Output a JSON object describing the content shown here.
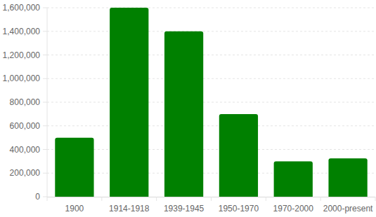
{
  "chart_data": {
    "type": "bar",
    "categories": [
      "1900",
      "1914-1918",
      "1939-1945",
      "1950-1970",
      "1970-2000",
      "2000-present"
    ],
    "values": [
      500000,
      1600000,
      1400000,
      700000,
      300000,
      325000
    ],
    "color": "#008000",
    "ylim": [
      0,
      1600000
    ],
    "yticks": [
      0,
      {
        "value": 200000,
        "label": "200,000"
      },
      {
        "value": 400000,
        "label": "400,000"
      },
      {
        "value": 600000,
        "label": "600,000"
      },
      {
        "value": 800000,
        "label": "800,000"
      },
      {
        "value": 1000000,
        "label": "1,000,000"
      },
      {
        "value": 1200000,
        "label": "1,200,000"
      },
      {
        "value": 1400000,
        "label": "1,400,000"
      },
      {
        "value": 1600000,
        "label": "1,600,000"
      }
    ],
    "grid": true
  }
}
